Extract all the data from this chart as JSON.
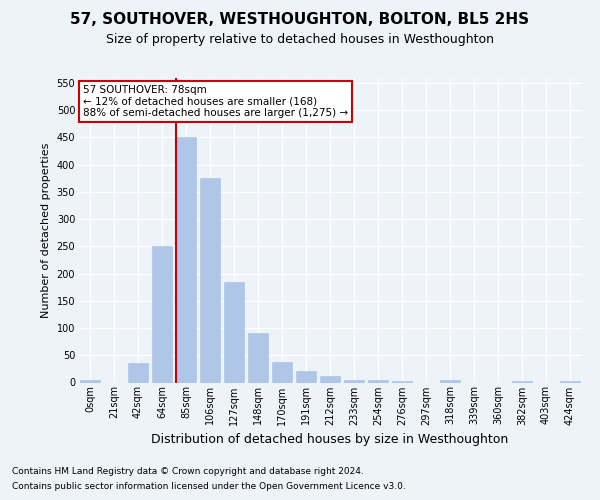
{
  "title": "57, SOUTHOVER, WESTHOUGHTON, BOLTON, BL5 2HS",
  "subtitle": "Size of property relative to detached houses in Westhoughton",
  "xlabel": "Distribution of detached houses by size in Westhoughton",
  "ylabel": "Number of detached properties",
  "bar_categories": [
    "0sqm",
    "21sqm",
    "42sqm",
    "64sqm",
    "85sqm",
    "106sqm",
    "127sqm",
    "148sqm",
    "170sqm",
    "191sqm",
    "212sqm",
    "233sqm",
    "254sqm",
    "276sqm",
    "297sqm",
    "318sqm",
    "339sqm",
    "360sqm",
    "382sqm",
    "403sqm",
    "424sqm"
  ],
  "bar_values": [
    5,
    0,
    35,
    250,
    450,
    375,
    185,
    90,
    38,
    21,
    12,
    5,
    5,
    2,
    0,
    5,
    0,
    0,
    2,
    0,
    2
  ],
  "bar_color": "#aec6e8",
  "bar_edge_color": "#aec6e8",
  "property_line_bin_index": 4,
  "ylim": [
    0,
    560
  ],
  "yticks": [
    0,
    50,
    100,
    150,
    200,
    250,
    300,
    350,
    400,
    450,
    500,
    550
  ],
  "annotation_text": "57 SOUTHOVER: 78sqm\n← 12% of detached houses are smaller (168)\n88% of semi-detached houses are larger (1,275) →",
  "footnote1": "Contains HM Land Registry data © Crown copyright and database right 2024.",
  "footnote2": "Contains public sector information licensed under the Open Government Licence v3.0.",
  "bg_color": "#eef2f9",
  "plot_bg_color": "#eef2f9",
  "grid_color": "#ffffff",
  "annotation_box_color": "#cc0000",
  "red_line_color": "#cc0000",
  "title_fontsize": 11,
  "subtitle_fontsize": 9,
  "ylabel_fontsize": 8,
  "xlabel_fontsize": 9,
  "tick_fontsize": 7,
  "annot_fontsize": 7.5,
  "footnote_fontsize": 6.5
}
